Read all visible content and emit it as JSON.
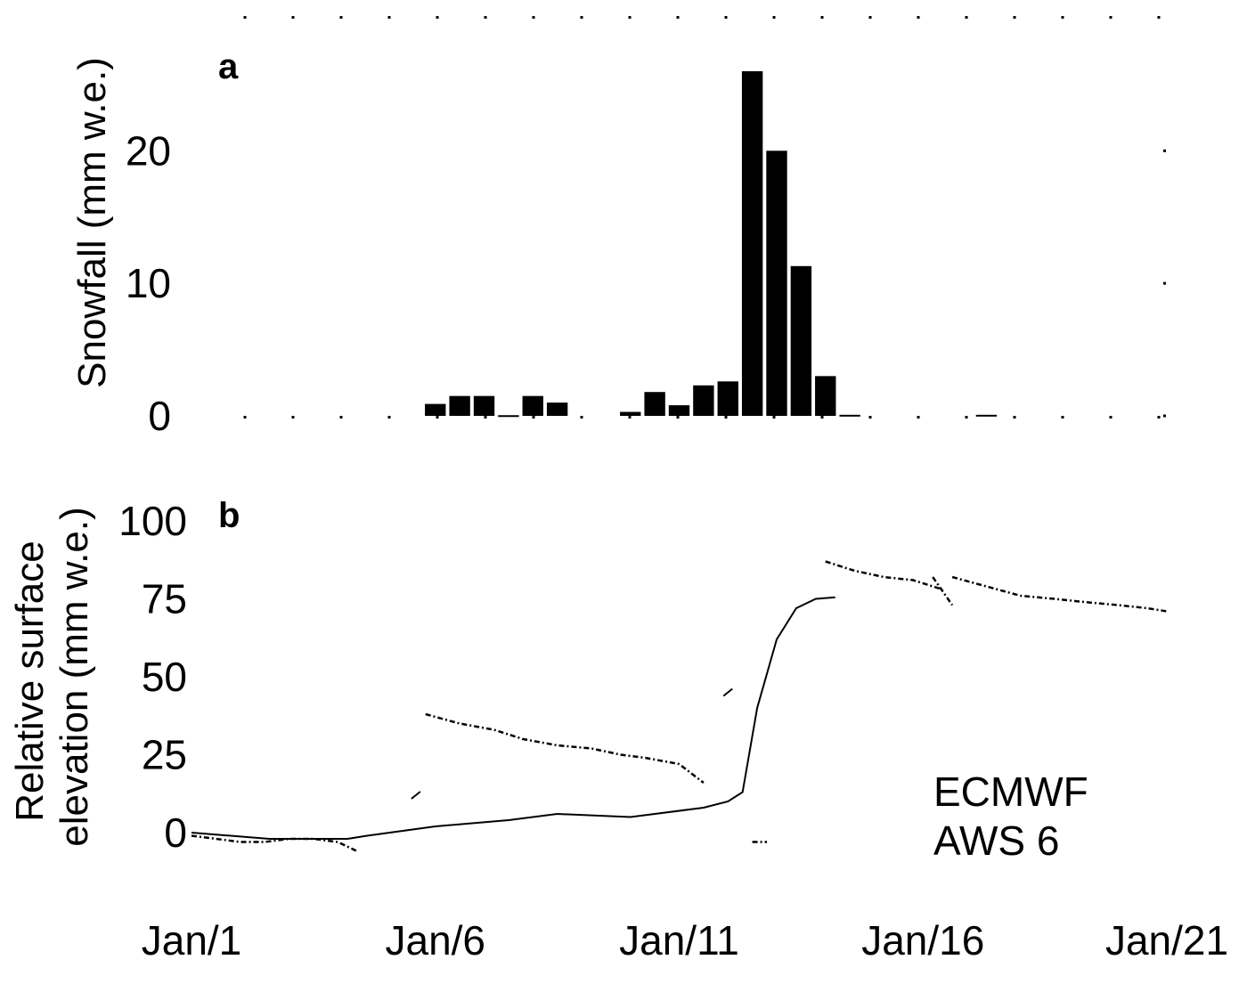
{
  "chart_data": [
    {
      "type": "bar",
      "panel_label": "a",
      "ylabel": "Snowfall (mm w.e.)",
      "ylim": [
        0,
        26
      ],
      "yticks": [
        0,
        10,
        20
      ],
      "x_range_days": [
        1,
        21
      ],
      "bar_width_days": 0.5,
      "bars": [
        {
          "x": 6.0,
          "y": 0.9
        },
        {
          "x": 6.5,
          "y": 1.5
        },
        {
          "x": 7.0,
          "y": 1.5
        },
        {
          "x": 7.5,
          "y": 0.05
        },
        {
          "x": 8.0,
          "y": 1.5
        },
        {
          "x": 8.5,
          "y": 1.0
        },
        {
          "x": 10.0,
          "y": 0.3
        },
        {
          "x": 10.5,
          "y": 1.8
        },
        {
          "x": 11.0,
          "y": 0.8
        },
        {
          "x": 11.5,
          "y": 2.3
        },
        {
          "x": 12.0,
          "y": 2.6
        },
        {
          "x": 12.5,
          "y": 26.0
        },
        {
          "x": 13.0,
          "y": 20.0
        },
        {
          "x": 13.5,
          "y": 11.3
        },
        {
          "x": 14.0,
          "y": 3.0
        },
        {
          "x": 14.5,
          "y": 0.08
        },
        {
          "x": 17.3,
          "y": 0.08
        }
      ]
    },
    {
      "type": "line",
      "panel_label": "b",
      "ylabel": [
        "Relative surface",
        "elevation (mm w.e.)"
      ],
      "ylim": [
        -10,
        105
      ],
      "yticks": [
        0,
        25,
        50,
        75,
        100
      ],
      "x_range_days": [
        1,
        21
      ],
      "series": [
        {
          "name": "ECMWF",
          "style": "solid",
          "x": [
            1,
            1.8,
            2.6,
            3.4,
            4.2,
            4.6,
            6.0,
            7.5,
            8.5,
            10.0,
            10.5,
            11.5,
            12.0,
            12.3,
            12.6,
            13.0,
            13.4,
            13.8,
            14.2
          ],
          "y": [
            0,
            -1,
            -2,
            -2,
            -2,
            -1,
            2,
            4,
            6,
            5,
            6,
            8,
            10,
            13,
            40,
            62,
            72,
            75,
            75.5
          ]
        },
        {
          "name": "AWS 6",
          "style": "dotted",
          "segments": [
            {
              "x": [
                1.0,
                1.5,
                2.0,
                2.5,
                3.0,
                3.5,
                4.0,
                4.4
              ],
              "y": [
                -1,
                -2,
                -3,
                -3,
                -2,
                -2,
                -3,
                -6
              ]
            },
            {
              "x": [
                5.8,
                6.5,
                7.2,
                7.8,
                8.5,
                9.2,
                9.8,
                10.3,
                11.0,
                11.5
              ],
              "y": [
                38,
                35,
                33,
                30,
                28,
                27,
                25,
                24,
                22,
                16
              ]
            },
            {
              "x": [
                12.0
              ],
              "y": [
                45
              ]
            },
            {
              "x": [
                12.5,
                12.8
              ],
              "y": [
                -3,
                -3
              ]
            },
            {
              "x": [
                5.6
              ],
              "y": [
                12
              ]
            },
            {
              "x": [
                14.0,
                14.6,
                15.2,
                15.8,
                16.4
              ],
              "y": [
                87,
                84,
                82,
                81,
                78
              ]
            },
            {
              "x": [
                16.2,
                16.6
              ],
              "y": [
                82,
                73
              ]
            },
            {
              "x": [
                16.6,
                17.3,
                18.0,
                18.7,
                19.3,
                20.0,
                20.6,
                21.0
              ],
              "y": [
                82,
                79,
                76,
                75,
                74,
                73,
                72,
                71
              ]
            }
          ]
        }
      ],
      "legend": {
        "items": [
          "ECMWF",
          "AWS 6"
        ],
        "position": "bottom-right"
      }
    }
  ],
  "x_tick_labels": [
    "Jan/1",
    "Jan/6",
    "Jan/11",
    "Jan/16",
    "Jan/21"
  ],
  "x_tick_values": [
    1,
    6,
    11,
    16,
    21
  ]
}
